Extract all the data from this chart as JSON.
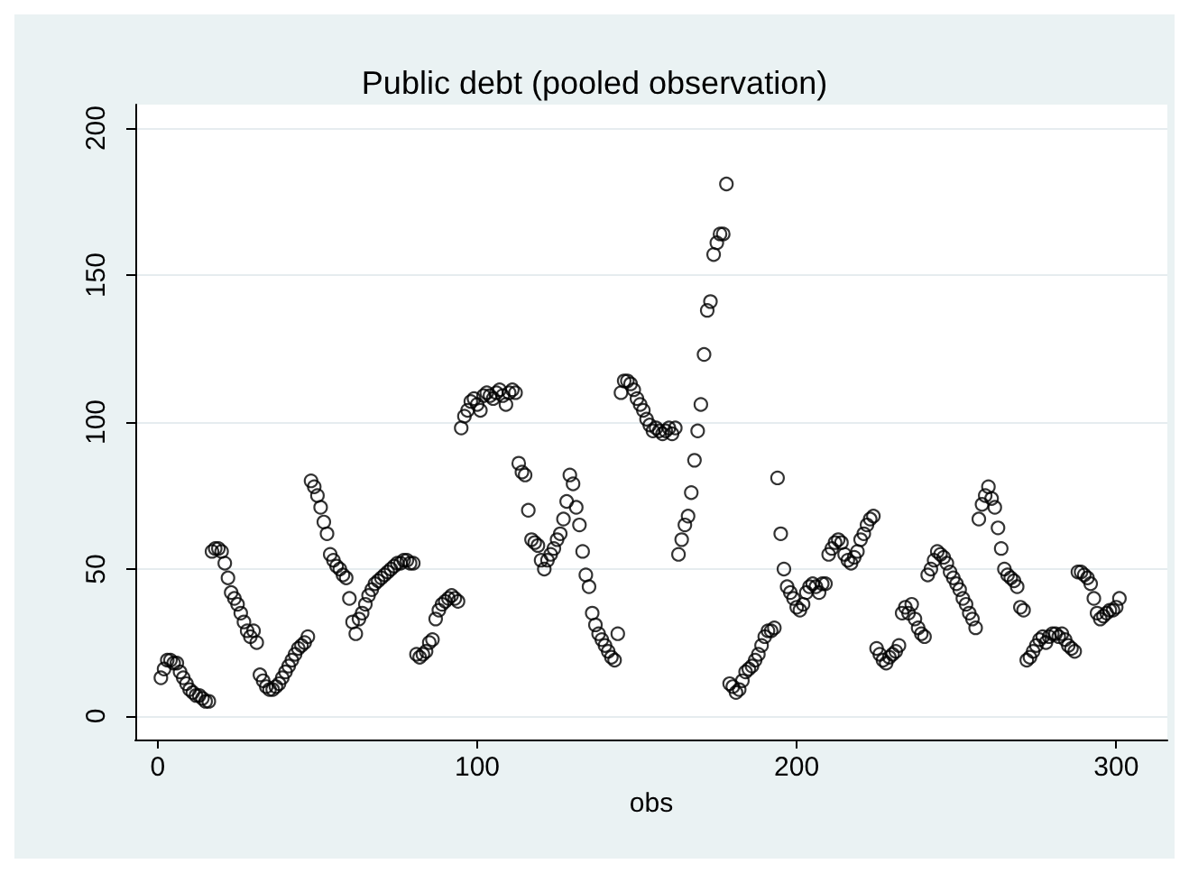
{
  "chart_data": {
    "type": "scatter",
    "title": "Public debt (pooled observation)",
    "xlabel": "obs",
    "x": [
      1,
      2,
      3,
      4,
      5,
      6,
      7,
      8,
      9,
      10,
      11,
      12,
      13,
      14,
      15,
      16,
      17,
      18,
      19,
      20,
      21,
      22,
      23,
      24,
      25,
      26,
      27,
      28,
      29,
      30,
      31,
      32,
      33,
      34,
      35,
      36,
      37,
      38,
      39,
      40,
      41,
      42,
      43,
      44,
      45,
      46,
      47,
      48,
      49,
      50,
      51,
      52,
      53,
      54,
      55,
      56,
      57,
      58,
      59,
      60,
      61,
      62,
      63,
      64,
      65,
      66,
      67,
      68,
      69,
      70,
      71,
      72,
      73,
      74,
      75,
      76,
      77,
      78,
      79,
      80,
      81,
      82,
      83,
      84,
      85,
      86,
      87,
      88,
      89,
      90,
      91,
      92,
      93,
      94,
      95,
      96,
      97,
      98,
      99,
      100,
      101,
      102,
      103,
      104,
      105,
      106,
      107,
      108,
      109,
      110,
      111,
      112,
      113,
      114,
      115,
      116,
      117,
      118,
      119,
      120,
      121,
      122,
      123,
      124,
      125,
      126,
      127,
      128,
      129,
      130,
      131,
      132,
      133,
      134,
      135,
      136,
      137,
      138,
      139,
      140,
      141,
      142,
      143,
      144,
      145,
      146,
      147,
      148,
      149,
      150,
      151,
      152,
      153,
      154,
      155,
      156,
      157,
      158,
      159,
      160,
      161,
      162,
      163,
      164,
      165,
      166,
      167,
      168,
      169,
      170,
      171,
      172,
      173,
      174,
      175,
      176,
      177,
      178,
      179,
      180,
      181,
      182,
      183,
      184,
      185,
      186,
      187,
      188,
      189,
      190,
      191,
      192,
      193,
      194,
      195,
      196,
      197,
      198,
      199,
      200,
      201,
      202,
      203,
      204,
      205,
      206,
      207,
      208,
      209,
      210,
      211,
      212,
      213,
      214,
      215,
      216,
      217,
      218,
      219,
      220,
      221,
      222,
      223,
      224,
      225,
      226,
      227,
      228,
      229,
      230,
      231,
      232,
      233,
      234,
      235,
      236,
      237,
      238,
      239,
      240,
      241,
      242,
      243,
      244,
      245,
      246,
      247,
      248,
      249,
      250,
      251,
      252,
      253,
      254,
      255,
      256,
      257,
      258,
      259,
      260,
      261,
      262,
      263,
      264,
      265,
      266,
      267,
      268,
      269,
      270,
      271,
      272,
      273,
      274,
      275,
      276,
      277,
      278,
      279,
      280,
      281,
      282,
      283,
      284,
      285,
      286,
      287,
      288,
      289,
      290,
      291,
      292,
      293,
      294,
      295,
      296,
      297,
      298,
      299,
      300,
      301
    ],
    "series": [
      {
        "color": "#000000",
        "values": [
          13,
          16,
          19,
          19,
          18,
          18,
          15,
          13,
          11,
          9,
          8,
          7,
          7,
          6,
          5,
          5,
          56,
          57,
          57,
          56,
          52,
          47,
          42,
          40,
          38,
          35,
          32,
          29,
          27,
          29,
          25,
          14,
          12,
          10,
          9,
          9,
          10,
          11,
          13,
          15,
          17,
          19,
          21,
          23,
          24,
          25,
          27,
          80,
          78,
          75,
          71,
          66,
          62,
          55,
          53,
          51,
          50,
          48,
          47,
          40,
          32,
          28,
          33,
          35,
          38,
          41,
          43,
          45,
          46,
          47,
          48,
          49,
          50,
          51,
          52,
          52,
          53,
          53,
          52,
          52,
          21,
          20,
          21,
          22,
          25,
          26,
          33,
          36,
          38,
          39,
          40,
          41,
          40,
          39,
          98,
          102,
          104,
          107,
          108,
          106,
          104,
          109,
          110,
          109,
          108,
          110,
          111,
          109,
          106,
          110,
          111,
          110,
          86,
          83,
          82,
          70,
          60,
          59,
          58,
          53,
          50,
          53,
          55,
          57,
          60,
          62,
          67,
          73,
          82,
          79,
          71,
          65,
          56,
          48,
          44,
          35,
          31,
          28,
          26,
          24,
          22,
          20,
          19,
          28,
          110,
          114,
          114,
          113,
          111,
          108,
          106,
          104,
          101,
          99,
          97,
          98,
          97,
          96,
          97,
          98,
          96,
          98,
          55,
          60,
          65,
          68,
          76,
          87,
          97,
          106,
          123,
          138,
          141,
          157,
          161,
          164,
          164,
          181,
          11,
          10,
          8,
          9,
          12,
          15,
          16,
          17,
          19,
          21,
          24,
          27,
          29,
          29,
          30,
          81,
          62,
          50,
          44,
          42,
          40,
          37,
          36,
          38,
          42,
          44,
          45,
          44,
          42,
          45,
          45,
          55,
          57,
          59,
          60,
          59,
          55,
          53,
          52,
          54,
          56,
          60,
          62,
          65,
          67,
          68,
          23,
          21,
          19,
          18,
          20,
          21,
          22,
          24,
          35,
          37,
          35,
          38,
          33,
          30,
          28,
          27,
          48,
          50,
          53,
          56,
          55,
          54,
          52,
          49,
          47,
          45,
          43,
          40,
          38,
          35,
          33,
          30,
          67,
          72,
          75,
          78,
          74,
          71,
          64,
          57,
          50,
          48,
          47,
          46,
          44,
          37,
          36,
          19,
          20,
          22,
          24,
          26,
          27,
          25,
          27,
          28,
          28,
          27,
          28,
          26,
          24,
          23,
          22,
          49,
          49,
          48,
          47,
          45,
          40,
          35,
          33,
          34,
          35,
          36,
          36,
          37,
          40
        ]
      }
    ],
    "xlim": [
      -7,
      316
    ],
    "xticks": [
      0,
      100,
      200,
      300
    ],
    "ylim": [
      -8,
      208
    ],
    "yticks": [
      0,
      50,
      100,
      150,
      200
    ],
    "grid": "y",
    "marker": "circle"
  }
}
